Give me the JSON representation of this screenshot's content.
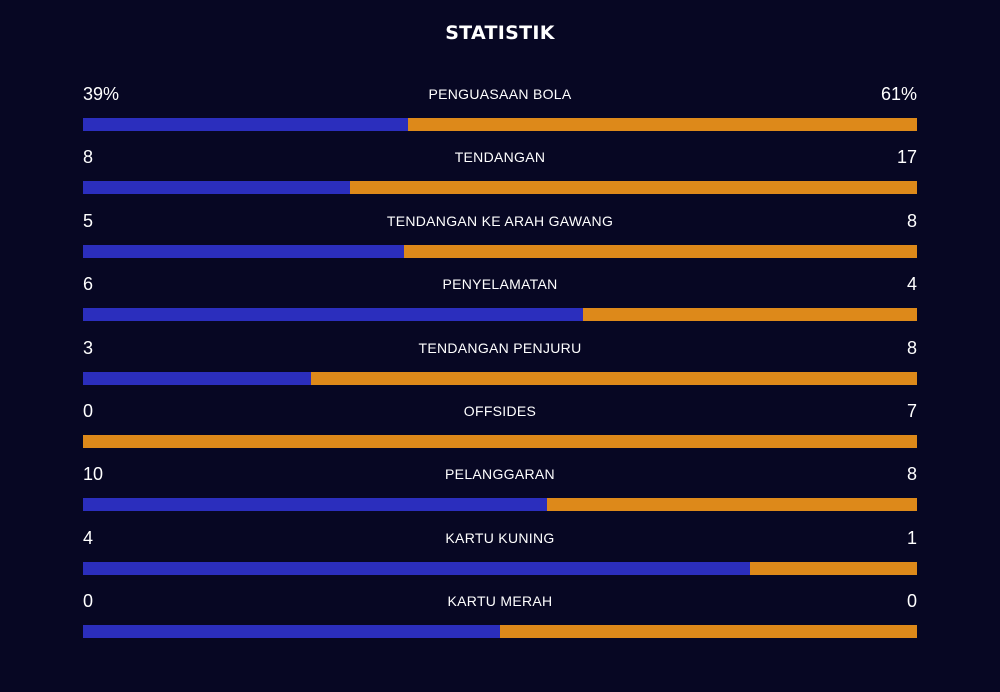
{
  "title": "STATISTIK",
  "colors": {
    "background": "#070723",
    "home_bar": "#2b2ebd",
    "away_bar": "#dd891a",
    "text": "#ffffff"
  },
  "stats": [
    {
      "label": "PENGUASAAN BOLA",
      "home": "39%",
      "away": "61%",
      "home_share": 0.39
    },
    {
      "label": "TENDANGAN",
      "home": "8",
      "away": "17",
      "home_share": 0.32
    },
    {
      "label": "TENDANGAN KE ARAH GAWANG",
      "home": "5",
      "away": "8",
      "home_share": 0.385
    },
    {
      "label": "PENYELAMATAN",
      "home": "6",
      "away": "4",
      "home_share": 0.6
    },
    {
      "label": "TENDANGAN PENJURU",
      "home": "3",
      "away": "8",
      "home_share": 0.273
    },
    {
      "label": "OFFSIDES",
      "home": "0",
      "away": "7",
      "home_share": 0.0
    },
    {
      "label": "PELANGGARAN",
      "home": "10",
      "away": "8",
      "home_share": 0.556
    },
    {
      "label": "KARTU KUNING",
      "home": "4",
      "away": "1",
      "home_share": 0.8
    },
    {
      "label": "KARTU MERAH",
      "home": "0",
      "away": "0",
      "home_share": 0.5
    }
  ]
}
